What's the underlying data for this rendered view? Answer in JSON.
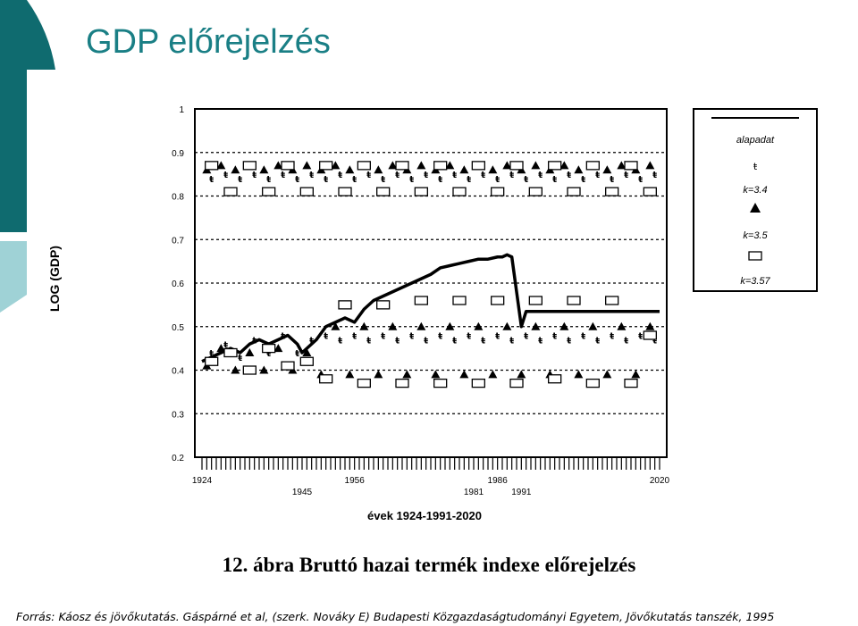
{
  "slide": {
    "title": "GDP előrejelzés",
    "caption": "12. ábra Bruttó hazai termék indexe előrejelzés",
    "source": "Forrás: Káosz és jövőkutatás. Gáspárné et al, (szerk. Nováky E) Budapesti Közgazdaságtudományi Egyetem, Jövőkutatás tanszék, 1995"
  },
  "colors": {
    "accent_dark": "#0f6b6f",
    "accent_light": "#9fd2d6",
    "title": "#1a7f85"
  },
  "chart_data": {
    "type": "line",
    "title": "",
    "xlabel": "évek 1924-1991-2020",
    "ylabel": "LOG (GDP)",
    "xlim": [
      1924,
      2020
    ],
    "ylim": [
      0.2,
      1.0
    ],
    "y_ticks": [
      "0.2",
      "0.3",
      "0.4",
      "0.5",
      "0.6",
      "0.7",
      "0.8",
      "0.9",
      "1"
    ],
    "x_tick_labels_top": [
      "1924",
      "1956",
      "1986",
      "2020"
    ],
    "x_tick_labels_bottom": [
      "1945",
      "1981",
      "1991"
    ],
    "x_tick_positions_top": [
      1924,
      1956,
      1986,
      2020
    ],
    "x_tick_positions_bottom": [
      1945,
      1981,
      1991
    ],
    "grid": true,
    "legend_position": "right",
    "legend": [
      "alapadat",
      "k=3.4",
      "k=3.5",
      "k=3.57"
    ],
    "series": [
      {
        "name": "alapadat",
        "marker": "line",
        "x": [
          1924,
          1926,
          1928,
          1930,
          1932,
          1934,
          1936,
          1938,
          1940,
          1942,
          1944,
          1945,
          1946,
          1948,
          1950,
          1952,
          1954,
          1956,
          1958,
          1960,
          1962,
          1964,
          1966,
          1968,
          1970,
          1972,
          1974,
          1976,
          1978,
          1980,
          1982,
          1984,
          1986,
          1987,
          1988,
          1989,
          1990,
          1991,
          1992,
          1994,
          1996,
          1998,
          2000,
          2005,
          2010,
          2015,
          2020
        ],
        "values": [
          0.42,
          0.43,
          0.44,
          0.45,
          0.44,
          0.46,
          0.47,
          0.46,
          0.47,
          0.48,
          0.46,
          0.44,
          0.45,
          0.47,
          0.5,
          0.51,
          0.52,
          0.51,
          0.54,
          0.56,
          0.57,
          0.58,
          0.59,
          0.6,
          0.61,
          0.62,
          0.635,
          0.64,
          0.645,
          0.65,
          0.655,
          0.655,
          0.66,
          0.66,
          0.665,
          0.66,
          0.58,
          0.5,
          0.535,
          0.535,
          0.535,
          0.535,
          0.535,
          0.535,
          0.535,
          0.535,
          0.535
        ]
      },
      {
        "name": "k=3.4",
        "marker": "dagger",
        "x": [
          1926,
          1929,
          1932,
          1935,
          1938,
          1941,
          1944,
          1947,
          1950,
          1953,
          1956,
          1959,
          1962,
          1965,
          1968,
          1971,
          1974,
          1977,
          1980,
          1983,
          1986,
          1989,
          1992,
          1995,
          1998,
          2001,
          2004,
          2007,
          2010,
          2013,
          2016,
          2019
        ],
        "values": [
          0.84,
          0.85,
          0.84,
          0.85,
          0.84,
          0.85,
          0.84,
          0.85,
          0.84,
          0.85,
          0.84,
          0.85,
          0.84,
          0.85,
          0.84,
          0.85,
          0.84,
          0.85,
          0.84,
          0.85,
          0.84,
          0.85,
          0.84,
          0.85,
          0.84,
          0.85,
          0.84,
          0.85,
          0.84,
          0.85,
          0.84,
          0.85
        ],
        "values_lower": [
          0.44,
          0.46,
          0.43,
          0.47,
          0.44,
          0.48,
          0.44,
          0.47,
          0.48,
          0.47,
          0.48,
          0.47,
          0.48,
          0.47,
          0.48,
          0.47,
          0.48,
          0.47,
          0.48,
          0.47,
          0.48,
          0.47,
          0.48,
          0.47,
          0.48,
          0.47,
          0.48,
          0.47,
          0.48,
          0.47,
          0.48,
          0.47
        ]
      },
      {
        "name": "k=3.5",
        "marker": "triangle",
        "x": [
          1925,
          1928,
          1931,
          1934,
          1937,
          1940,
          1943,
          1946,
          1949,
          1952,
          1955,
          1958,
          1961,
          1964,
          1967,
          1970,
          1973,
          1976,
          1979,
          1982,
          1985,
          1988,
          1991,
          1994,
          1997,
          2000,
          2003,
          2006,
          2009,
          2012,
          2015,
          2018
        ],
        "values": [
          0.86,
          0.87,
          0.86,
          0.87,
          0.86,
          0.87,
          0.86,
          0.87,
          0.86,
          0.87,
          0.86,
          0.87,
          0.86,
          0.87,
          0.86,
          0.87,
          0.86,
          0.87,
          0.86,
          0.87,
          0.86,
          0.87,
          0.86,
          0.87,
          0.86,
          0.87,
          0.86,
          0.87,
          0.86,
          0.87,
          0.86,
          0.87
        ],
        "values_lower": [
          0.41,
          0.45,
          0.4,
          0.44,
          0.4,
          0.45,
          0.4,
          0.44,
          0.39,
          0.5,
          0.39,
          0.5,
          0.39,
          0.5,
          0.39,
          0.5,
          0.39,
          0.5,
          0.39,
          0.5,
          0.39,
          0.5,
          0.39,
          0.5,
          0.39,
          0.5,
          0.39,
          0.5,
          0.39,
          0.5,
          0.39,
          0.5
        ]
      },
      {
        "name": "k=3.57",
        "marker": "square",
        "x": [
          1926,
          1930,
          1934,
          1938,
          1942,
          1946,
          1950,
          1954,
          1958,
          1962,
          1966,
          1970,
          1974,
          1978,
          1982,
          1986,
          1990,
          1994,
          1998,
          2002,
          2006,
          2010,
          2014,
          2018
        ],
        "values": [
          0.87,
          0.81,
          0.87,
          0.81,
          0.87,
          0.81,
          0.87,
          0.81,
          0.87,
          0.81,
          0.87,
          0.81,
          0.87,
          0.81,
          0.87,
          0.81,
          0.87,
          0.81,
          0.87,
          0.81,
          0.87,
          0.81,
          0.87,
          0.81
        ],
        "values_lower": [
          0.42,
          0.44,
          0.4,
          0.45,
          0.41,
          0.42,
          0.38,
          0.55,
          0.37,
          0.55,
          0.37,
          0.56,
          0.37,
          0.56,
          0.37,
          0.56,
          0.37,
          0.56,
          0.38,
          0.56,
          0.37,
          0.56,
          0.37,
          0.48
        ]
      }
    ]
  }
}
